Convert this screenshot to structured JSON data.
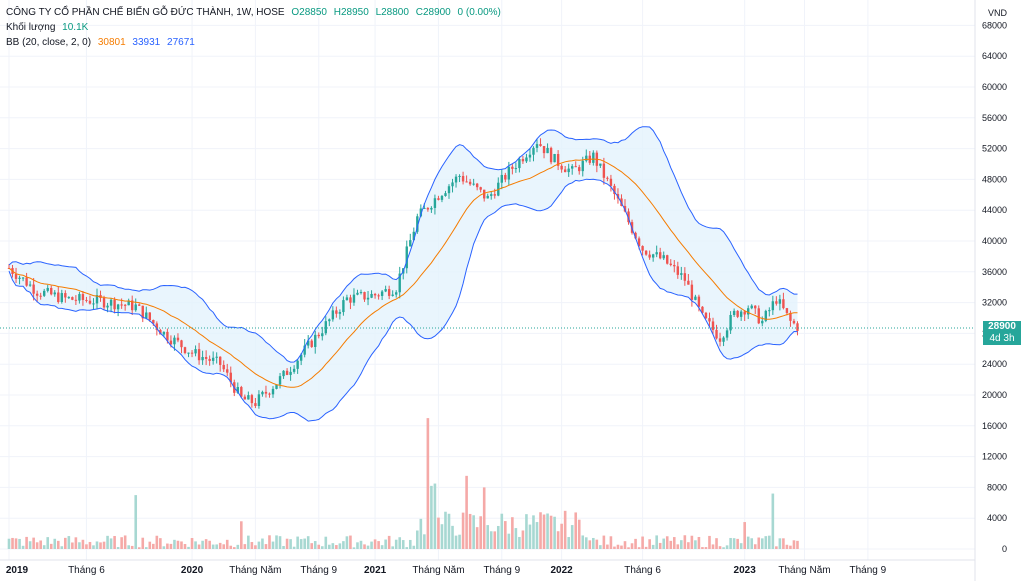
{
  "header": {
    "title": "CÔNG TY CỔ PHẦN CHẾ BIẾN GỖ ĐỨC THÀNH, 1W, HOSE",
    "open": "O28850",
    "high": "H28950",
    "low": "L28800",
    "close": "C28900",
    "change": "0 (0.00%)",
    "volume_label": "Khối lượng",
    "volume_value": "10.1K",
    "bb_label": "BB (20, close, 2, 0)",
    "bb_basis": "30801",
    "bb_upper": "33931",
    "bb_lower": "27671"
  },
  "price_tag": {
    "price": "28900",
    "countdown": "4d 3h"
  },
  "currency": "VND",
  "colors": {
    "up": "#26a69a",
    "down": "#ef5350",
    "basis": "#f57c00",
    "band": "#2962ff",
    "band_fill": "#e3f2fd"
  },
  "chart_data": {
    "type": "candlestick",
    "title": "CÔNG TY CỔ PHẦN CHẾ BIẾN GỖ ĐỨC THÀNH, 1W, HOSE",
    "y_ticks": [
      0,
      4000,
      8000,
      12000,
      16000,
      20000,
      24000,
      28000,
      32000,
      36000,
      40000,
      44000,
      48000,
      52000,
      56000,
      60000,
      64000,
      68000
    ],
    "x_ticks": [
      "2019",
      "Tháng 6",
      "2020",
      "Tháng Năm",
      "Tháng 9",
      "2021",
      "Tháng Năm",
      "Tháng 9",
      "2022",
      "Tháng 6",
      "2023",
      "Tháng Năm",
      "Tháng 9"
    ],
    "x_tick_weeks": [
      0,
      22,
      52,
      70,
      88,
      104,
      122,
      140,
      157,
      180,
      209,
      226,
      244
    ],
    "price_keypoints": [
      [
        0,
        36500
      ],
      [
        8,
        33500
      ],
      [
        16,
        32500
      ],
      [
        26,
        32200
      ],
      [
        36,
        31500
      ],
      [
        44,
        28000
      ],
      [
        52,
        25500
      ],
      [
        60,
        24000
      ],
      [
        66,
        19500
      ],
      [
        70,
        19000
      ],
      [
        78,
        22500
      ],
      [
        88,
        28000
      ],
      [
        96,
        32500
      ],
      [
        104,
        33000
      ],
      [
        110,
        34000
      ],
      [
        116,
        43000
      ],
      [
        122,
        46000
      ],
      [
        128,
        48500
      ],
      [
        136,
        45500
      ],
      [
        142,
        49000
      ],
      [
        150,
        53000
      ],
      [
        155,
        50500
      ],
      [
        160,
        49000
      ],
      [
        166,
        51000
      ],
      [
        172,
        46000
      ],
      [
        180,
        39000
      ],
      [
        186,
        37500
      ],
      [
        192,
        35000
      ],
      [
        197,
        30000
      ],
      [
        202,
        27500
      ],
      [
        206,
        30500
      ],
      [
        210,
        31500
      ],
      [
        214,
        29500
      ],
      [
        218,
        32500
      ],
      [
        222,
        29500
      ],
      [
        224,
        28900
      ]
    ],
    "volume_spikes": [
      [
        36,
        7000
      ],
      [
        66,
        3600
      ],
      [
        119,
        17000
      ],
      [
        120,
        8200
      ],
      [
        121,
        8500
      ],
      [
        130,
        9500
      ],
      [
        135,
        8000
      ],
      [
        217,
        7200
      ],
      [
        209,
        3500
      ]
    ]
  }
}
